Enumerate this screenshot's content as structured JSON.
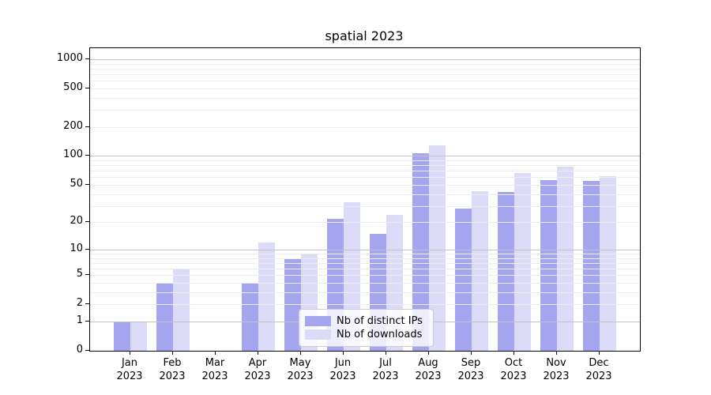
{
  "chart_data": {
    "type": "bar",
    "title": "spatial 2023",
    "categories": [
      "Jan",
      "Feb",
      "Mar",
      "Apr",
      "May",
      "Jun",
      "Jul",
      "Aug",
      "Sep",
      "Oct",
      "Nov",
      "Dec"
    ],
    "category_year": "2023",
    "series": [
      {
        "name": "Nb of distinct IPs",
        "color": "#a5a5ef",
        "values": [
          1,
          4,
          0,
          4,
          8,
          22,
          15,
          107,
          28,
          42,
          56,
          55
        ]
      },
      {
        "name": "Nb of downloads",
        "color": "#dbdbf8",
        "values": [
          1,
          6,
          0,
          12,
          9,
          33,
          24,
          128,
          43,
          67,
          78,
          62
        ]
      }
    ],
    "yscale": "log1p",
    "yticks": [
      0,
      1,
      2,
      5,
      10,
      20,
      50,
      100,
      200,
      500,
      1000
    ],
    "ylim": [
      0,
      1300
    ],
    "xlabel": "",
    "ylabel": "",
    "grid": "horizontal-major-and-minor",
    "legend_position": "lower center",
    "colors": {
      "major_grid": "#c3c3c3",
      "minor_grid": "#ececec",
      "axis": "#000000",
      "background": "#ffffff"
    }
  }
}
